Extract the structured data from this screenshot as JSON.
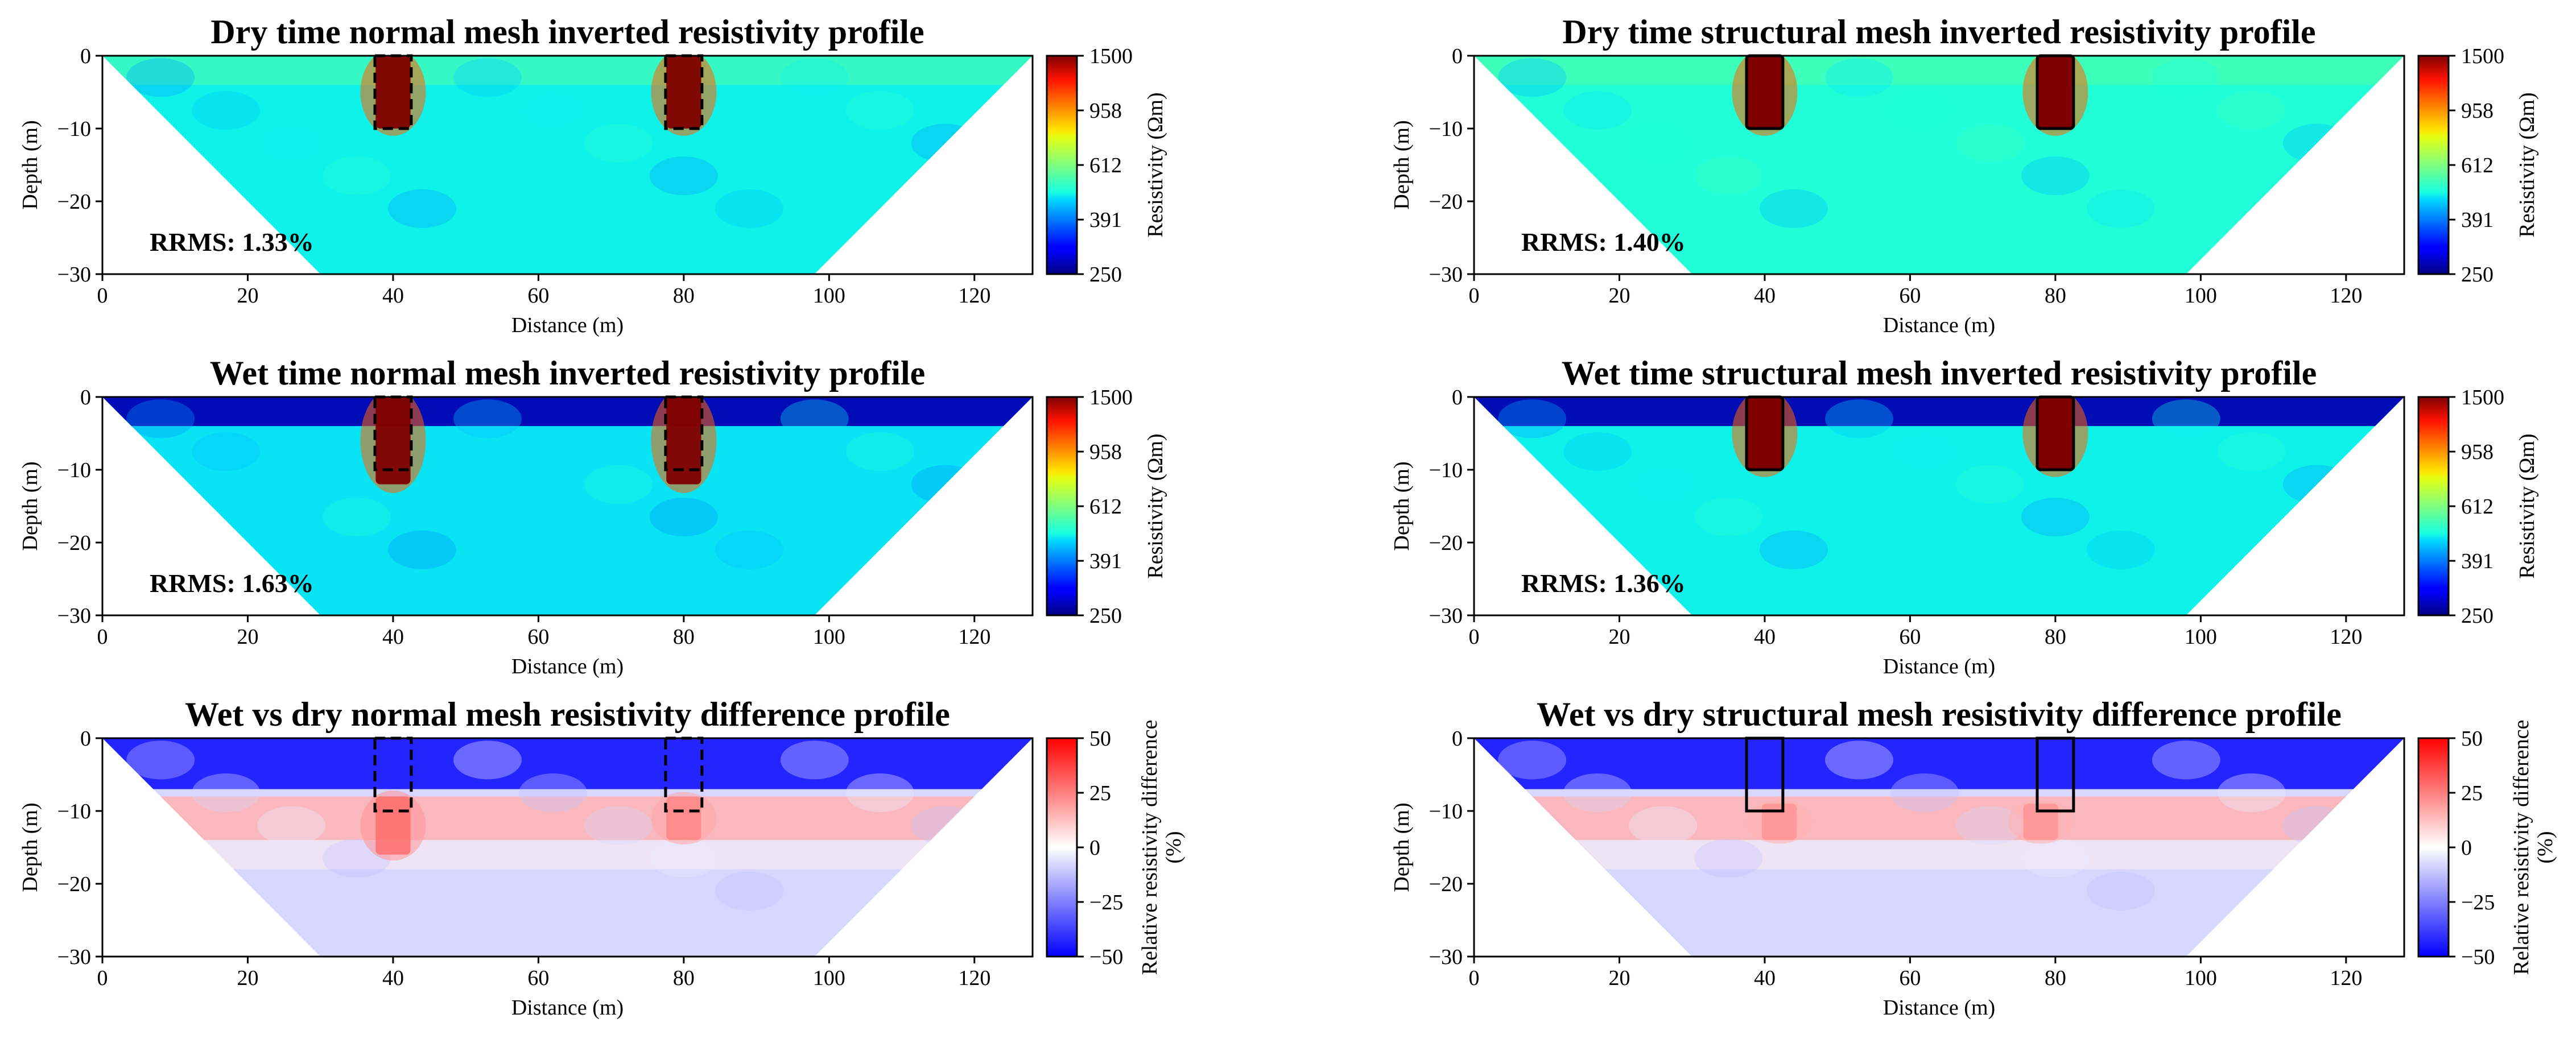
{
  "figure": {
    "colors": {
      "background": "#ffffff",
      "axes": "#000000",
      "jet_low": "#00007f",
      "jet_mid": "#7fff7f",
      "jet_high": "#7f0000",
      "diff_low": "#0000ff",
      "diff_mid": "#ffffff",
      "diff_high": "#ff0000"
    }
  },
  "chart_data": [
    {
      "type": "heatmap",
      "title": "Dry time normal mesh inverted resistivity profile",
      "xlabel": "Distance (m)",
      "ylabel": "Depth (m)",
      "xlim": [
        0,
        128
      ],
      "ylim": [
        -30,
        0
      ],
      "xticks": [
        0,
        20,
        40,
        60,
        80,
        100,
        120
      ],
      "yticks": [
        0,
        -10,
        -20,
        -30
      ],
      "domain_trapezoid_top": [
        0,
        128
      ],
      "domain_trapezoid_bottom": [
        30,
        98
      ],
      "colormap": "jet",
      "colorbar_label": "Resistivity (Ωm)",
      "colorbar_ticks": [
        250,
        391,
        612,
        958,
        1500
      ],
      "colorbar_scale": "log",
      "background_value": 480,
      "near_surface_value": 560,
      "anomalies": [
        {
          "x": 40,
          "y_top": 0,
          "y_bottom": -10,
          "value": 1500
        },
        {
          "x": 80,
          "y_top": 0,
          "y_bottom": -10,
          "value": 1500
        }
      ],
      "structure_boxes": [
        {
          "x0": 37.5,
          "x1": 42.5,
          "y0": 0,
          "y1": -10,
          "style": "dashed"
        },
        {
          "x0": 77.5,
          "x1": 82.5,
          "y0": 0,
          "y1": -10,
          "style": "dashed"
        }
      ],
      "annotation": "RRMS: 1.33%"
    },
    {
      "type": "heatmap",
      "title": "Dry time structural mesh inverted resistivity profile",
      "xlabel": "Distance (m)",
      "ylabel": "Depth (m)",
      "xlim": [
        0,
        128
      ],
      "ylim": [
        -30,
        0
      ],
      "xticks": [
        0,
        20,
        40,
        60,
        80,
        100,
        120
      ],
      "yticks": [
        0,
        -10,
        -20,
        -30
      ],
      "domain_trapezoid_top": [
        0,
        128
      ],
      "domain_trapezoid_bottom": [
        30,
        98
      ],
      "colormap": "jet",
      "colorbar_label": "Resistivity (Ωm)",
      "colorbar_ticks": [
        250,
        391,
        612,
        958,
        1500
      ],
      "colorbar_scale": "log",
      "background_value": 500,
      "near_surface_value": 560,
      "anomalies": [
        {
          "x": 40,
          "y_top": 0,
          "y_bottom": -10,
          "value": 1500
        },
        {
          "x": 80,
          "y_top": 0,
          "y_bottom": -10,
          "value": 1500
        }
      ],
      "structure_boxes": [
        {
          "x0": 37.5,
          "x1": 42.5,
          "y0": 0,
          "y1": -10,
          "style": "solid-filled"
        },
        {
          "x0": 77.5,
          "x1": 82.5,
          "y0": 0,
          "y1": -10,
          "style": "solid-filled"
        }
      ],
      "annotation": "RRMS: 1.40%"
    },
    {
      "type": "heatmap",
      "title": "Wet time normal mesh inverted resistivity profile",
      "xlabel": "Distance (m)",
      "ylabel": "Depth (m)",
      "xlim": [
        0,
        128
      ],
      "ylim": [
        -30,
        0
      ],
      "xticks": [
        0,
        20,
        40,
        60,
        80,
        100,
        120
      ],
      "yticks": [
        0,
        -10,
        -20,
        -30
      ],
      "domain_trapezoid_top": [
        0,
        128
      ],
      "domain_trapezoid_bottom": [
        30,
        98
      ],
      "colormap": "jet",
      "colorbar_label": "Resistivity (Ωm)",
      "colorbar_ticks": [
        250,
        391,
        612,
        958,
        1500
      ],
      "colorbar_scale": "log",
      "background_value": 470,
      "near_surface_value": 270,
      "anomalies": [
        {
          "x": 40,
          "y_top": 0,
          "y_bottom": -12,
          "value": 1500
        },
        {
          "x": 80,
          "y_top": 0,
          "y_bottom": -12,
          "value": 1500
        }
      ],
      "structure_boxes": [
        {
          "x0": 37.5,
          "x1": 42.5,
          "y0": 0,
          "y1": -10,
          "style": "dashed"
        },
        {
          "x0": 77.5,
          "x1": 82.5,
          "y0": 0,
          "y1": -10,
          "style": "dashed"
        }
      ],
      "annotation": "RRMS: 1.63%"
    },
    {
      "type": "heatmap",
      "title": "Wet time structural mesh inverted resistivity profile",
      "xlabel": "Distance (m)",
      "ylabel": "Depth (m)",
      "xlim": [
        0,
        128
      ],
      "ylim": [
        -30,
        0
      ],
      "xticks": [
        0,
        20,
        40,
        60,
        80,
        100,
        120
      ],
      "yticks": [
        0,
        -10,
        -20,
        -30
      ],
      "domain_trapezoid_top": [
        0,
        128
      ],
      "domain_trapezoid_bottom": [
        30,
        98
      ],
      "colormap": "jet",
      "colorbar_label": "Resistivity (Ωm)",
      "colorbar_ticks": [
        250,
        391,
        612,
        958,
        1500
      ],
      "colorbar_scale": "log",
      "background_value": 480,
      "near_surface_value": 270,
      "anomalies": [
        {
          "x": 40,
          "y_top": 0,
          "y_bottom": -10,
          "value": 1500
        },
        {
          "x": 80,
          "y_top": 0,
          "y_bottom": -10,
          "value": 1500
        }
      ],
      "structure_boxes": [
        {
          "x0": 37.5,
          "x1": 42.5,
          "y0": 0,
          "y1": -10,
          "style": "solid-filled"
        },
        {
          "x0": 77.5,
          "x1": 82.5,
          "y0": 0,
          "y1": -10,
          "style": "solid-filled"
        }
      ],
      "annotation": "RRMS: 1.36%"
    },
    {
      "type": "heatmap",
      "title": "Wet vs dry normal mesh resistivity difference profile",
      "xlabel": "Distance (m)",
      "ylabel": "Depth (m)",
      "xlim": [
        0,
        128
      ],
      "ylim": [
        -30,
        0
      ],
      "xticks": [
        0,
        20,
        40,
        60,
        80,
        100,
        120
      ],
      "yticks": [
        0,
        -10,
        -20,
        -30
      ],
      "domain_trapezoid_top": [
        0,
        128
      ],
      "domain_trapezoid_bottom": [
        30,
        98
      ],
      "colormap": "bwr",
      "colorbar_label_lines": [
        "Relative resistivity difference",
        "(%)"
      ],
      "colorbar_ticks": [
        -50,
        -25,
        0,
        25,
        50
      ],
      "colorbar_scale": "linear",
      "near_surface_value": -45,
      "middle_band_value": 15,
      "deep_value": -8,
      "anomalies": [
        {
          "x": 40,
          "y_top": -8,
          "y_bottom": -16,
          "value": 30
        },
        {
          "x": 80,
          "y_top": -8,
          "y_bottom": -14,
          "value": 25
        }
      ],
      "structure_boxes": [
        {
          "x0": 37.5,
          "x1": 42.5,
          "y0": 0,
          "y1": -10,
          "style": "dashed"
        },
        {
          "x0": 77.5,
          "x1": 82.5,
          "y0": 0,
          "y1": -10,
          "style": "dashed"
        }
      ],
      "annotation": ""
    },
    {
      "type": "heatmap",
      "title": "Wet vs dry structural mesh resistivity difference profile",
      "xlabel": "Distance (m)",
      "ylabel": "Depth (m)",
      "xlim": [
        0,
        128
      ],
      "ylim": [
        -30,
        0
      ],
      "xticks": [
        0,
        20,
        40,
        60,
        80,
        100,
        120
      ],
      "yticks": [
        0,
        -10,
        -20,
        -30
      ],
      "domain_trapezoid_top": [
        0,
        128
      ],
      "domain_trapezoid_bottom": [
        30,
        98
      ],
      "colormap": "bwr",
      "colorbar_label_lines": [
        "Relative resistivity difference",
        "(%)"
      ],
      "colorbar_ticks": [
        -50,
        -25,
        0,
        25,
        50
      ],
      "colorbar_scale": "linear",
      "near_surface_value": -45,
      "middle_band_value": 15,
      "deep_value": -8,
      "anomalies": [
        {
          "x": 42,
          "y_top": -9,
          "y_bottom": -14,
          "value": 22
        },
        {
          "x": 78,
          "y_top": -9,
          "y_bottom": -14,
          "value": 22
        }
      ],
      "structure_boxes": [
        {
          "x0": 37.5,
          "x1": 42.5,
          "y0": 0,
          "y1": -10,
          "style": "solid"
        },
        {
          "x0": 77.5,
          "x1": 82.5,
          "y0": 0,
          "y1": -10,
          "style": "solid"
        }
      ],
      "annotation": ""
    }
  ]
}
